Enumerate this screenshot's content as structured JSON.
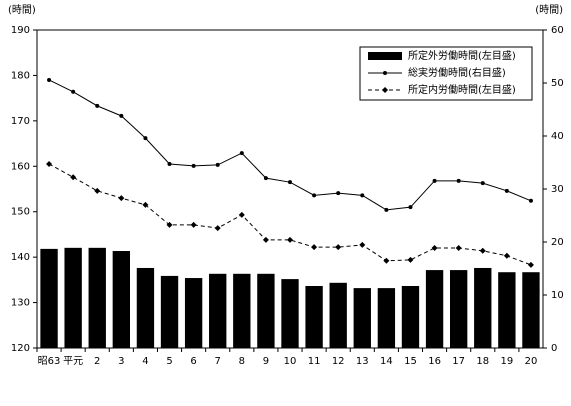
{
  "chart_data": {
    "type": "bar_line",
    "ylabel": "(時間)",
    "y2label": "(時間)",
    "categories": [
      "昭63",
      "平元",
      "2",
      "3",
      "4",
      "5",
      "6",
      "7",
      "8",
      "9",
      "10",
      "11",
      "12",
      "13",
      "14",
      "15",
      "16",
      "17",
      "18",
      "19",
      "20"
    ],
    "ylim": [
      120,
      190
    ],
    "yticks": [
      120,
      130,
      140,
      150,
      160,
      170,
      180,
      190
    ],
    "y2lim": [
      0,
      60
    ],
    "y2ticks": [
      0,
      10,
      20,
      30,
      40,
      50,
      60
    ],
    "series": [
      {
        "name": "所定外労働時間(左目盛)",
        "type": "bar",
        "axis": "y2",
        "color": "#000000",
        "values": [
          18.7,
          18.9,
          18.9,
          18.3,
          15.1,
          13.6,
          13.2,
          14.0,
          14.0,
          14.0,
          13.0,
          11.7,
          12.3,
          11.3,
          11.3,
          11.7,
          14.7,
          14.7,
          15.1,
          14.3,
          14.3
        ]
      },
      {
        "name": "総実労働時間(右目盛)",
        "type": "line",
        "color": "#000000",
        "dashed": false,
        "values": [
          179.0,
          176.4,
          173.3,
          171.1,
          166.2,
          160.5,
          160.1,
          160.3,
          162.9,
          157.4,
          156.5,
          153.6,
          154.1,
          153.6,
          150.4,
          151.0,
          156.8,
          156.8,
          156.3,
          154.6,
          152.4
        ]
      },
      {
        "name": "所定内労働時間(左目盛)",
        "type": "line",
        "color": "#000000",
        "dashed": true,
        "values": [
          160.5,
          157.6,
          154.6,
          153.0,
          151.5,
          147.1,
          147.1,
          146.4,
          149.3,
          143.8,
          143.8,
          142.2,
          142.2,
          142.7,
          139.2,
          139.4,
          142.0,
          142.0,
          141.4,
          140.3,
          138.3
        ]
      }
    ]
  }
}
